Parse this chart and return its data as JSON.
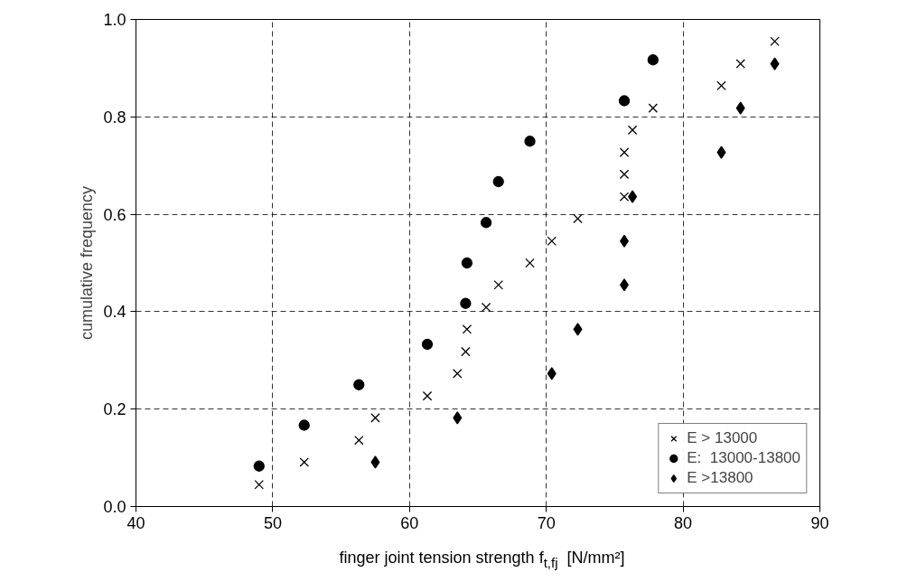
{
  "chart_data": {
    "type": "scatter",
    "xlabel": "finger joint tension strength f$_{t,fj}$  [N/mm²]",
    "ylabel": "cumulative frequency",
    "xlim": [
      40,
      90
    ],
    "xticks": [
      40,
      50,
      60,
      70,
      80,
      90
    ],
    "ylim": [
      0,
      1
    ],
    "yticks": [
      {
        "value": 0,
        "label": "0.0"
      },
      {
        "value": 0.2,
        "label": "0.2"
      },
      {
        "value": 0.4,
        "label": "0.4"
      },
      {
        "value": 0.6,
        "label": "0.6"
      },
      {
        "value": 0.8,
        "label": "0.8"
      },
      {
        "value": 1,
        "label": "1.0"
      }
    ],
    "grid": true,
    "legend": "bottom right",
    "line_style": "dashed",
    "series": [
      {
        "name": "E > 13000",
        "color": "#000000",
        "marker": "cross",
        "x": [
          49,
          52.3,
          56.3,
          57.5,
          61.3,
          63.5,
          64.1,
          64.2,
          65.6,
          66.5,
          68.8,
          70.4,
          72.3,
          75.7,
          75.7,
          75.7,
          76.3,
          77.8,
          82.8,
          84.2,
          86.7
        ],
        "values": [
          0.045,
          0.091,
          0.136,
          0.182,
          0.227,
          0.273,
          0.318,
          0.364,
          0.409,
          0.455,
          0.5,
          0.545,
          0.591,
          0.636,
          0.682,
          0.727,
          0.773,
          0.818,
          0.864,
          0.909,
          0.955
        ]
      },
      {
        "name": "E:  13000-13800",
        "color": "#000000",
        "marker": "circle",
        "x": [
          49,
          52.3,
          56.3,
          61.3,
          64.1,
          64.2,
          65.6,
          66.5,
          68.8,
          75.7,
          77.8
        ],
        "values": [
          0.083,
          0.167,
          0.25,
          0.333,
          0.417,
          0.5,
          0.583,
          0.667,
          0.75,
          0.833,
          0.917
        ]
      },
      {
        "name": "E >13800",
        "color": "#000000",
        "marker": "diamond",
        "x": [
          57.5,
          63.5,
          70.4,
          72.3,
          75.7,
          75.7,
          76.3,
          82.8,
          84.2,
          86.7
        ],
        "values": [
          0.091,
          0.182,
          0.273,
          0.364,
          0.455,
          0.545,
          0.636,
          0.727,
          0.818,
          0.909
        ]
      }
    ]
  }
}
